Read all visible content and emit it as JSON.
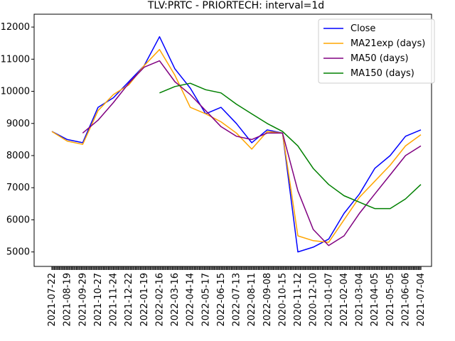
{
  "chart_data": {
    "type": "line",
    "title": "TLV:PRTC - PRIORTECH: interval=1d",
    "xlabel": "",
    "ylabel": "",
    "ylim": [
      4550,
      12400
    ],
    "yticks": [
      5000,
      6000,
      7000,
      8000,
      9000,
      10000,
      11000,
      12000
    ],
    "ytick_labels": [
      "5000",
      "6000",
      "7000",
      "8000",
      "9000",
      "10000",
      "11000",
      "12000"
    ],
    "x": [
      "2021-07-22",
      "2021-08-19",
      "2021-09-29",
      "2021-10-27",
      "2021-11-24",
      "2021-12-22",
      "2022-01-19",
      "2022-02-16",
      "2022-03-16",
      "2022-04-14",
      "2022-05-17",
      "2022-06-15",
      "2022-07-13",
      "2022-08-11",
      "2022-09-08",
      "2020-10-15",
      "2020-11-12",
      "2020-12-10",
      "2021-01-07",
      "2021-02-04",
      "2021-03-04",
      "2021-04-05",
      "2021-05-05",
      "2021-06-06",
      "2021-07-04"
    ],
    "legend_position": "top-right",
    "series": [
      {
        "name": "Close",
        "color": "#0000ff",
        "values": [
          8750,
          8500,
          8400,
          9500,
          9800,
          10300,
          10800,
          11700,
          10700,
          10100,
          9300,
          9500,
          9000,
          8400,
          8800,
          8700,
          5000,
          5150,
          5400,
          6200,
          6800,
          7600,
          8000,
          8600,
          8800
        ]
      },
      {
        "name": "MA21exp (days)",
        "color": "#ffa500",
        "values": [
          8750,
          8450,
          8350,
          9400,
          9900,
          10200,
          10800,
          11300,
          10500,
          9500,
          9300,
          9050,
          8700,
          8200,
          8750,
          8700,
          5500,
          5350,
          5300,
          6000,
          6700,
          7200,
          7700,
          8300,
          8650
        ]
      },
      {
        "name": "MA50 (days)",
        "color": "#800080",
        "values": [
          null,
          null,
          8700,
          9100,
          9650,
          10250,
          10750,
          10950,
          10300,
          9900,
          9400,
          8900,
          8600,
          8500,
          8700,
          8700,
          6900,
          5700,
          5200,
          5500,
          6200,
          6800,
          7400,
          8000,
          8300
        ]
      },
      {
        "name": "MA150 (days)",
        "color": "#008000",
        "values": [
          null,
          null,
          null,
          null,
          null,
          null,
          null,
          9950,
          10150,
          10250,
          10050,
          9950,
          9600,
          9300,
          9000,
          8750,
          8300,
          7600,
          7100,
          6750,
          6550,
          6350,
          6350,
          6650,
          7100
        ]
      }
    ]
  }
}
